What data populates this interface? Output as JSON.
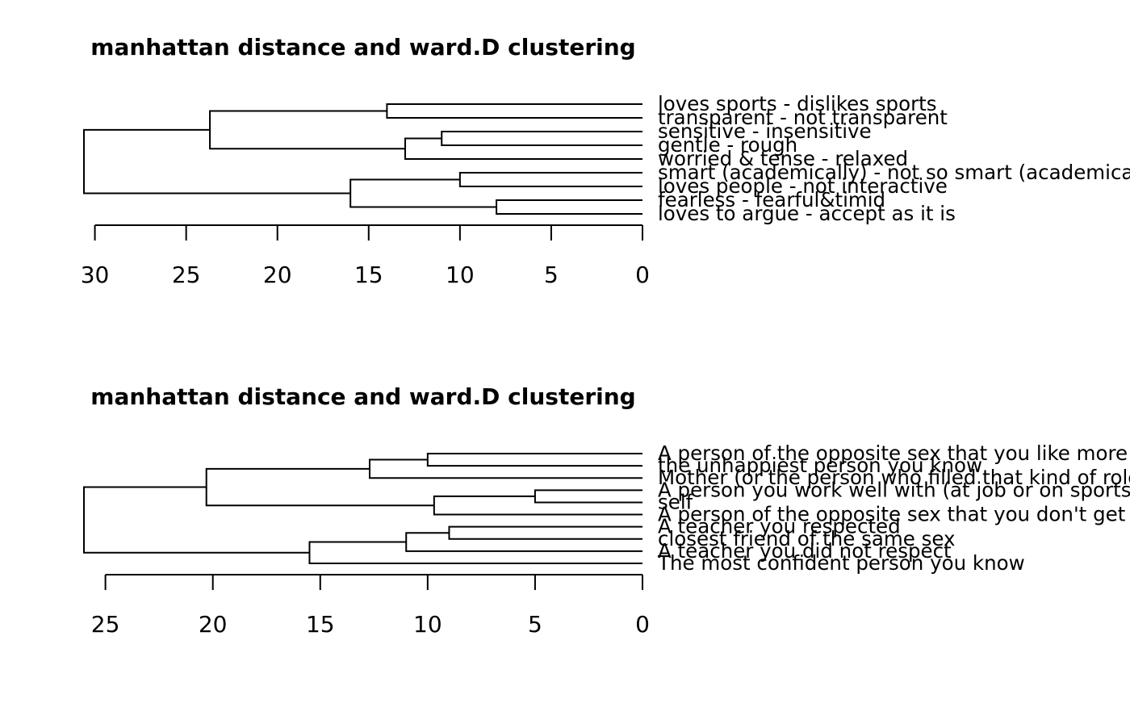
{
  "chart_data": [
    {
      "type": "dendrogram",
      "orientation": "horizontal",
      "title": "manhattan distance and ward.D clustering",
      "xlim": [
        30.6,
        0
      ],
      "ticks": [
        30,
        25,
        20,
        15,
        10,
        5,
        0
      ],
      "tick_labels": [
        "30",
        "25",
        "20",
        "15",
        "10",
        "5",
        "0"
      ],
      "leaves": [
        "loves sports - dislikes sports",
        "transparent - not transparent",
        "sensitive - insensitive",
        "gentle - rough",
        "worried & tense - relaxed",
        "smart (academically) - not so smart (academically)",
        "loves people - not interactive",
        "fearless - fearful&timid",
        "loves to argue - accept as it is"
      ],
      "merges": [
        {
          "a": 7,
          "b": 8,
          "height": 8.0
        },
        {
          "a": 5,
          "b": 6,
          "height": 10.0
        },
        {
          "a": 2,
          "b": 3,
          "height": 11.0
        },
        {
          "a": 0,
          "b": 1,
          "height": 14.0
        },
        {
          "a": -3,
          "b": 4,
          "height": 13.0
        },
        {
          "a": -2,
          "b": -1,
          "height": 16.0
        },
        {
          "a": -4,
          "b": -5,
          "height": 23.7
        },
        {
          "a": -7,
          "b": -6,
          "height": 30.6
        }
      ]
    },
    {
      "type": "dendrogram",
      "orientation": "horizontal",
      "title": "manhattan distance and ward.D clustering",
      "xlim": [
        26.0,
        0
      ],
      "ticks": [
        25,
        20,
        15,
        10,
        5,
        0
      ],
      "tick_labels": [
        "25",
        "20",
        "15",
        "10",
        "5",
        "0"
      ],
      "leaves": [
        "A person of the opposite sex that you like more than others",
        "the unhappiest person you know",
        "Mother (or the person who filled that kind of role)",
        "A person you work well with (at job or on sports team)",
        "self",
        "A person of the opposite sex that you don't get along with",
        "A teacher you respected",
        "closest friend of the same sex",
        "A teacher you did not respect",
        "The most confident person you know"
      ],
      "merges": [
        {
          "a": 3,
          "b": 4,
          "height": 5.0
        },
        {
          "a": 6,
          "b": 7,
          "height": 9.0
        },
        {
          "a": 0,
          "b": 1,
          "height": 10.0
        },
        {
          "a": -1,
          "b": 5,
          "height": 9.7
        },
        {
          "a": -2,
          "b": 8,
          "height": 11.0
        },
        {
          "a": -3,
          "b": 2,
          "height": 12.7
        },
        {
          "a": -5,
          "b": 9,
          "height": 15.5
        },
        {
          "a": -6,
          "b": -4,
          "height": 20.3
        },
        {
          "a": -8,
          "b": -7,
          "height": 26.0
        }
      ]
    }
  ]
}
